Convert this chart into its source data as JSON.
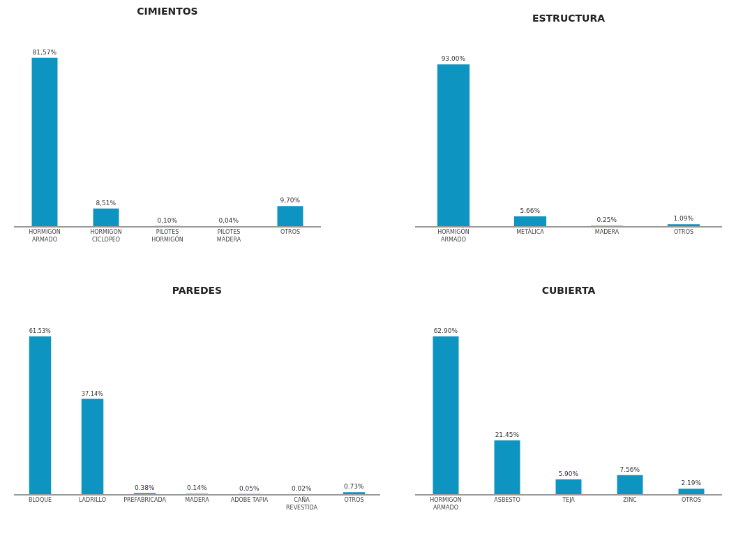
{
  "chart_data": [
    {
      "type": "bar",
      "title": "CIMIENTOS",
      "categories": [
        "HORMIGON\nARMADO",
        "HORMIGON\nCICLOPEO",
        "PILOTES\nHORMIGÓN",
        "PILOTES\nMADERA",
        "OTROS"
      ],
      "values": [
        81.57,
        8.51,
        0.1,
        0.04,
        9.7
      ],
      "color": "#0e94c0",
      "value_labels": [
        "81,57%",
        "8,51%",
        "0,10%",
        "0,04%",
        "9,70%"
      ]
    },
    {
      "type": "bar",
      "title": "ESTRUCTURA",
      "categories": [
        "HORMIGÓN\nARMADO",
        "METÁLICA",
        "MADERA",
        "OTROS"
      ],
      "values": [
        93.0,
        5.66,
        0.25,
        1.09
      ],
      "color": "#0e94c0",
      "value_labels": [
        "93.00%",
        "5.66%",
        "0.25%",
        "1.09%"
      ]
    },
    {
      "type": "bar",
      "title": "PAREDES",
      "categories": [
        "BLOQUE",
        "LADRILLO",
        "PREFABRICADA",
        "MADERA",
        "ADOBE TAPIA",
        "CAÑA\nREVESTIDA",
        "OTROS"
      ],
      "values": [
        61.53,
        37.14,
        0.38,
        0.14,
        0.05,
        0.02,
        0.73
      ],
      "color": "#0e94c0",
      "value_labels": [
        "61.53%",
        "37.14%",
        "0.38%",
        "0.14%",
        "0.05%",
        "0.02%",
        "0.73%"
      ]
    },
    {
      "type": "bar",
      "title": "CUBIERTA",
      "categories": [
        "HORMIGON\nARMADO",
        "ASBESTO",
        "TEJA",
        "ZINC",
        "OTROS"
      ],
      "values": [
        62.9,
        21.45,
        5.9,
        7.56,
        2.19
      ],
      "color": "#0e94c0",
      "value_labels": [
        "62.90%",
        "21.45%",
        "5.90%",
        "7.56%",
        "2.19%"
      ]
    }
  ]
}
